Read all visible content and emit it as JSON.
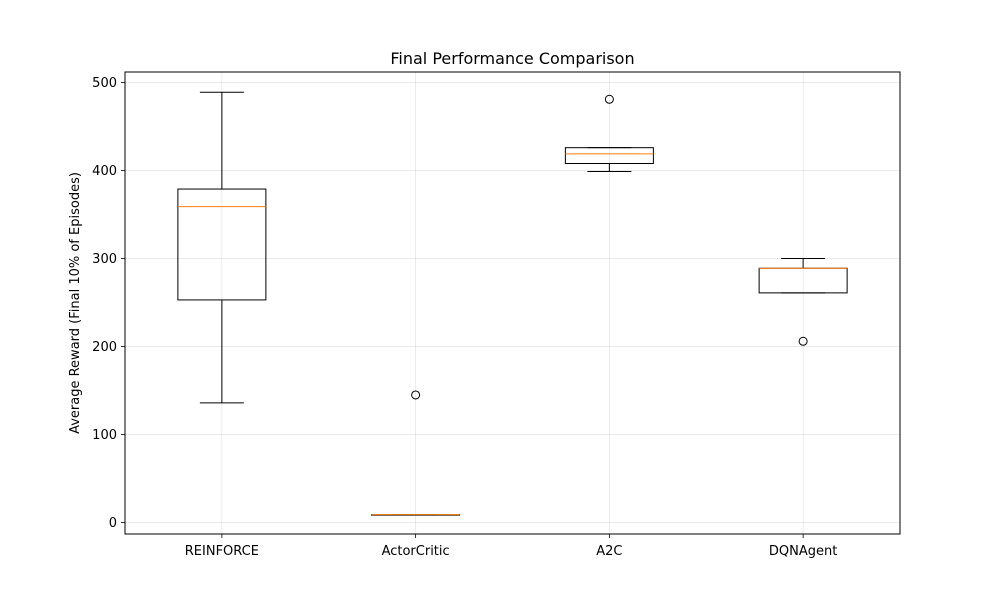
{
  "chart_data": {
    "type": "box",
    "title": "Final Performance Comparison",
    "xlabel": "",
    "ylabel": "Average Reward (Final 10% of Episodes)",
    "ylim": [
      -13,
      512
    ],
    "yticks": [
      0,
      100,
      200,
      300,
      400,
      500
    ],
    "categories": [
      "REINFORCE",
      "ActorCritic",
      "A2C",
      "DQNAgent"
    ],
    "boxes": [
      {
        "label": "REINFORCE",
        "whisker_low": 136,
        "q1": 253,
        "median": 359,
        "q3": 379,
        "whisker_high": 489,
        "outliers": []
      },
      {
        "label": "ActorCritic",
        "whisker_low": 9,
        "q1": 9,
        "median": 9,
        "q3": 9,
        "whisker_high": 9,
        "outliers": [
          145
        ]
      },
      {
        "label": "A2C",
        "whisker_low": 399,
        "q1": 408,
        "median": 419,
        "q3": 426,
        "whisker_high": 426,
        "outliers": [
          481
        ]
      },
      {
        "label": "DQNAgent",
        "whisker_low": 261,
        "q1": 261,
        "median": 289,
        "q3": 289,
        "whisker_high": 300,
        "outliers": [
          206
        ]
      }
    ],
    "grid": true,
    "colors": {
      "box": "#000000",
      "median": "#ff7f0e",
      "grid": "#b0b0b0"
    }
  }
}
